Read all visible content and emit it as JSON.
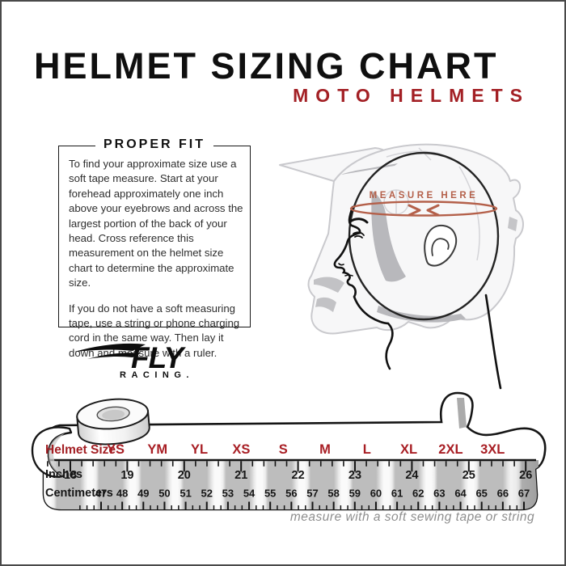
{
  "page": {
    "title": "HELMET SIZING CHART",
    "subtitle": "MOTO HELMETS"
  },
  "colors": {
    "brand_red": "#A32025",
    "size_red": "#A81E24",
    "measure_annotation": "#B4604A",
    "tape_stripe_gray": "#BDBDBD",
    "text_dark": "#161616"
  },
  "proper_fit": {
    "heading": "PROPER FIT",
    "paragraph1": "To find your approximate size use a soft tape measure. Start at your forehead approximately one inch above your eyebrows and across the largest portion of the back of your head. Cross reference this measurement on the helmet size chart to determine the approximate size.",
    "paragraph2": "If you do not have a soft measuring tape, use a string or phone charging cord in the same way. Then lay it down and measure with a ruler."
  },
  "logo": {
    "name": "FLY",
    "subtext": "RACING."
  },
  "diagram": {
    "annotation": "MEASURE HERE"
  },
  "size_chart": {
    "row_labels": {
      "sizes": "Helmet Size",
      "inches": "Inches",
      "centimeters": "Centimeters"
    },
    "sizes": [
      "YS",
      "YM",
      "YL",
      "XS",
      "S",
      "M",
      "L",
      "XL",
      "2XL",
      "3XL"
    ],
    "inches": [
      "18",
      "19",
      "20",
      "21",
      "22",
      "23",
      "24",
      "25",
      "26"
    ],
    "centimeters": [
      "47",
      "48",
      "49",
      "50",
      "51",
      "52",
      "53",
      "54",
      "55",
      "56",
      "57",
      "58",
      "59",
      "60",
      "61",
      "62",
      "63",
      "64",
      "65",
      "66",
      "67"
    ]
  },
  "caption": "measure with a soft sewing tape or string"
}
